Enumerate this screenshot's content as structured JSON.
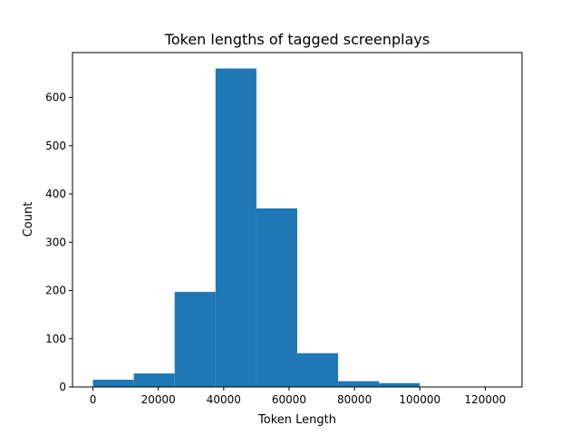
{
  "chart_data": {
    "type": "bar",
    "title": "Token lengths of tagged screenplays",
    "xlabel": "Token Length",
    "ylabel": "Count",
    "bin_edges": [
      0,
      12500,
      25000,
      37500,
      50000,
      62500,
      75000,
      87500,
      100000,
      112500,
      125000
    ],
    "values": [
      15,
      28,
      197,
      660,
      370,
      70,
      12,
      8,
      0,
      0
    ],
    "xlim": [
      -6250,
      131250
    ],
    "ylim": [
      0,
      693
    ],
    "x_ticks": [
      0,
      20000,
      40000,
      60000,
      80000,
      100000,
      120000
    ],
    "x_tick_labels": [
      "0",
      "20000",
      "40000",
      "60000",
      "80000",
      "100000",
      "120000"
    ],
    "y_ticks": [
      0,
      100,
      200,
      300,
      400,
      500,
      600
    ],
    "y_tick_labels": [
      "0",
      "100",
      "200",
      "300",
      "400",
      "500",
      "600"
    ],
    "bar_color": "#1f77b4",
    "grid": false
  }
}
